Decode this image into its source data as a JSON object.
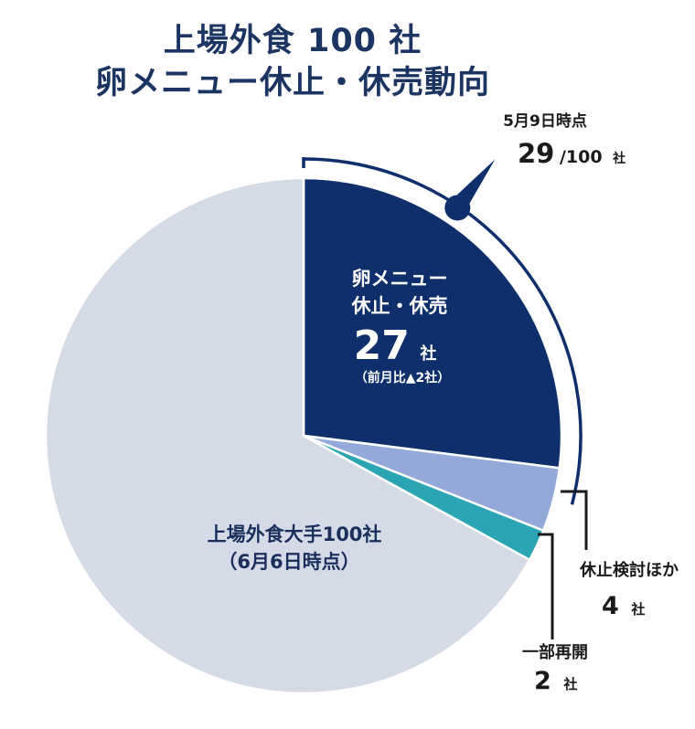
{
  "title_line1": "上場外食 100 社",
  "title_line2": "卵メニュー休止・休売動向",
  "chart_data": {
    "type": "pie",
    "total": 100,
    "slices": [
      {
        "name": "卵メニュー休止・休売",
        "value": 27,
        "color": "#0e2f6b"
      },
      {
        "name": "休止検討ほか",
        "value": 4,
        "color": "#94a9d9"
      },
      {
        "name": "一部再開",
        "value": 2,
        "color": "#2ba5b3"
      },
      {
        "name": "上場外食大手100社",
        "value": 67,
        "color": "#d5dbe6"
      }
    ],
    "arc_highlight_value": 29
  },
  "labels": {
    "main_line1": "卵メニュー",
    "main_line2": "休止・休売",
    "main_value": "27",
    "main_unit": "社",
    "main_change": "（前月比▲2社）",
    "big_line1": "上場外食大手100社",
    "big_line2": "（6月6日時点）",
    "review_label": "休止検討ほか",
    "review_value": "4",
    "review_unit": "社",
    "resume_label": "一部再開",
    "resume_value": "2",
    "resume_unit": "社",
    "may_date": "5月9日時点",
    "may_value": "29",
    "may_suffix": "/100",
    "may_unit": "社"
  }
}
